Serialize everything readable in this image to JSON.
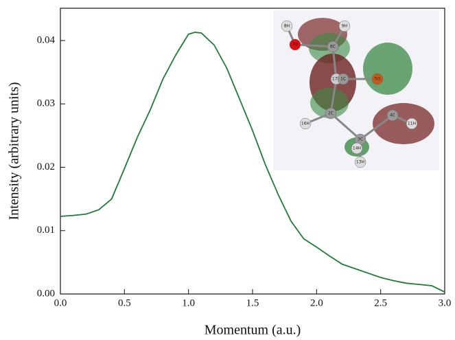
{
  "chart_data": {
    "type": "line",
    "x_label": "Momentum (a.u.)",
    "y_label": "Intensity (arbitrary units)",
    "x": [
      0,
      0.1,
      0.2,
      0.3,
      0.4,
      0.5,
      0.6,
      0.7,
      0.8,
      0.9,
      1.0,
      1.05,
      1.1,
      1.2,
      1.3,
      1.4,
      1.5,
      1.6,
      1.7,
      1.8,
      1.9,
      2.0,
      2.1,
      2.2,
      2.3,
      2.4,
      2.5,
      2.6,
      2.7,
      2.8,
      2.9,
      3.0
    ],
    "series": [
      {
        "color": "#1f7a35",
        "values": [
          0.01225,
          0.0124,
          0.0126,
          0.0133,
          0.015,
          0.0198,
          0.0247,
          0.029,
          0.0339,
          0.0377,
          0.041,
          0.0413,
          0.0412,
          0.0393,
          0.0356,
          0.0307,
          0.0258,
          0.0204,
          0.0157,
          0.0115,
          0.0087,
          0.0074,
          0.006,
          0.0047,
          0.004,
          0.0033,
          0.0026,
          0.0021,
          0.0017,
          0.0015,
          0.0013,
          0.0003
        ]
      }
    ],
    "xlim": [
      0,
      3.0
    ],
    "xticks": [
      {
        "value": 0,
        "label": "0.0"
      },
      0.5,
      {
        "value": 1,
        "label": "1.0"
      },
      1.5,
      {
        "value": 2,
        "label": "2.0"
      },
      2.5,
      {
        "value": 3,
        "label": "3.0"
      }
    ],
    "ylim": [
      0,
      0.0451
    ],
    "yticks": [
      {
        "value": 0,
        "label": "0.00"
      },
      0.01,
      0.02,
      0.03,
      0.04
    ],
    "inset_labels": [
      "8H",
      "7O",
      "9H",
      "6C",
      "17H",
      "1C",
      "5O",
      "2C",
      "16H",
      "4C",
      "11H",
      "3C",
      "14H",
      "13H"
    ]
  }
}
